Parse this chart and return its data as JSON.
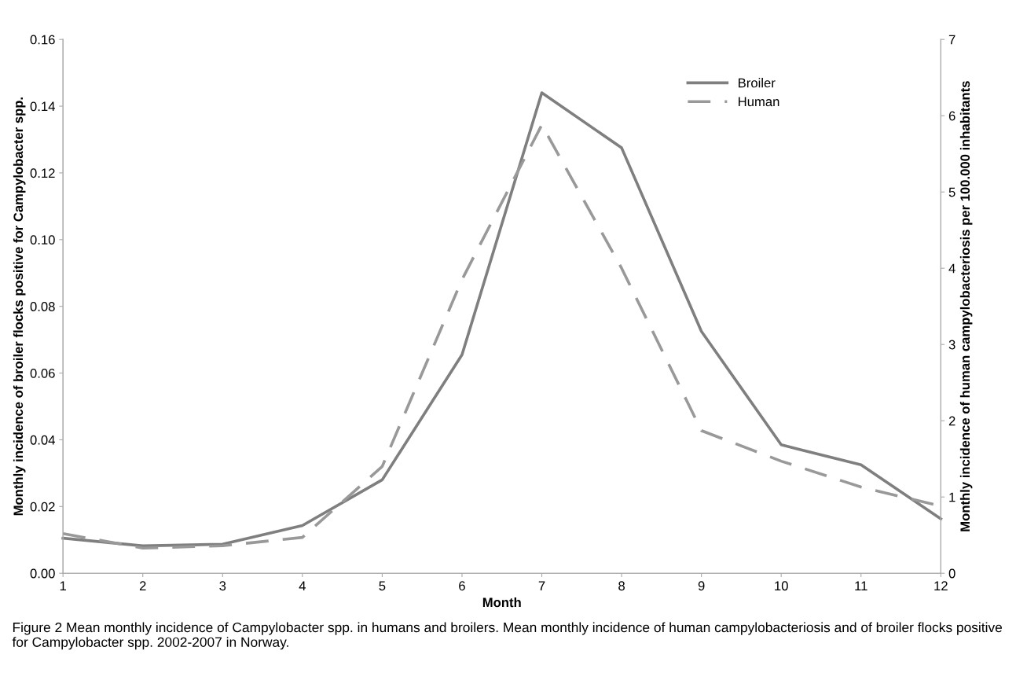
{
  "chart_data": {
    "type": "line",
    "xlabel": "Month",
    "ylabel": "Monthly incidence of broiler flocks positive for Campylobacter spp.",
    "y2label": "Monthly incidence of human campylobacteriosis per 100.000 inhabitants",
    "x": [
      1,
      2,
      3,
      4,
      5,
      6,
      7,
      8,
      9,
      10,
      11,
      12
    ],
    "xlim": [
      1,
      12
    ],
    "xticks": [
      1,
      2,
      3,
      4,
      5,
      6,
      7,
      8,
      9,
      10,
      11,
      12
    ],
    "ylim": [
      0,
      0.16
    ],
    "yticks": [
      {
        "value": 0,
        "label": "0.00"
      },
      {
        "value": 0.02,
        "label": "0.02"
      },
      {
        "value": 0.04,
        "label": "0.04"
      },
      {
        "value": 0.06,
        "label": "0.06"
      },
      {
        "value": 0.08,
        "label": "0.08"
      },
      {
        "value": 0.1,
        "label": "0.10"
      },
      {
        "value": 0.12,
        "label": "0.12"
      },
      {
        "value": 0.14,
        "label": "0.14"
      },
      {
        "value": 0.16,
        "label": "0.16"
      }
    ],
    "y2lim": [
      0,
      7
    ],
    "y2ticks": [
      0,
      1,
      2,
      3,
      4,
      5,
      6,
      7
    ],
    "series": [
      {
        "name": "Broiler",
        "color": "#7f7f7f",
        "line_style": "solid",
        "values": [
          0.0105,
          0.0082,
          0.0087,
          0.0143,
          0.028,
          0.0655,
          0.144,
          0.1275,
          0.0725,
          0.0385,
          0.0325,
          0.0163
        ]
      },
      {
        "name": "Human",
        "color": "#999999",
        "line_style": "dashed",
        "axis": "y2",
        "values": [
          0.52,
          0.33,
          0.36,
          0.47,
          1.4,
          3.85,
          5.88,
          4.0,
          1.87,
          1.47,
          1.13,
          0.88
        ]
      }
    ],
    "legend": "top right",
    "grid": false,
    "marker": "none",
    "annotations": [
      "Figure 2 Mean monthly incidence of Campylobacter spp. in humans and broilers. Mean monthly incidence of human campylobacteriosis and of broiler flocks positive for Campylobacter spp. 2002-2007 in Norway."
    ]
  }
}
